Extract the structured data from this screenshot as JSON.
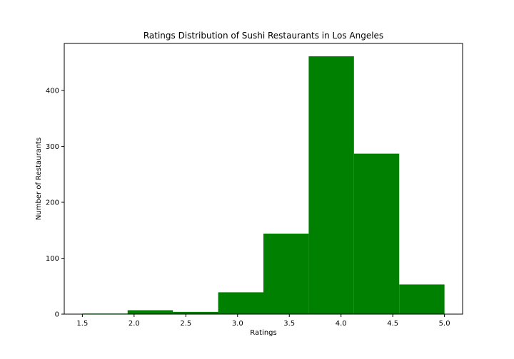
{
  "chart_data": {
    "type": "bar",
    "title": "Ratings Distribution of Sushi Restaurants in Los Angeles",
    "xlabel": "Ratings",
    "ylabel": "Number of Restaurants",
    "bin_edges": [
      1.5,
      1.9375,
      2.375,
      2.8125,
      3.25,
      3.6875,
      4.125,
      4.5625,
      5.0
    ],
    "values": [
      1,
      7,
      4,
      39,
      144,
      461,
      287,
      53
    ],
    "bar_color": "#008000",
    "xlim": [
      1.325,
      5.175
    ],
    "ylim": [
      0,
      484
    ],
    "x_ticks": [
      1.5,
      2.0,
      2.5,
      3.0,
      3.5,
      4.0,
      4.5,
      5.0
    ],
    "x_tick_labels": [
      "1.5",
      "2.0",
      "2.5",
      "3.0",
      "3.5",
      "4.0",
      "4.5",
      "5.0"
    ],
    "y_ticks": [
      0,
      100,
      200,
      300,
      400
    ],
    "y_tick_labels": [
      "0",
      "100",
      "200",
      "300",
      "400"
    ],
    "grid": false,
    "legend": "none"
  }
}
